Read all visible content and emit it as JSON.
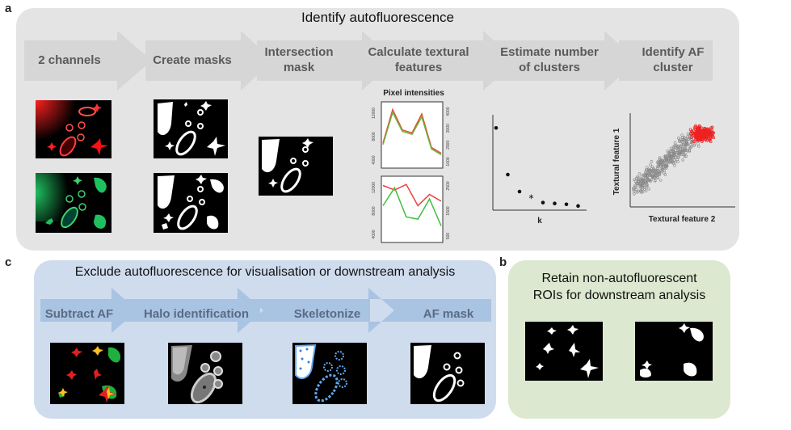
{
  "panel_a": {
    "letter": "a",
    "title": "Identify autofluorescence",
    "steps": [
      "2 channels",
      "Create masks",
      "Intersection mask",
      "Calculate textural features",
      "Estimate number of clusters",
      "Identify AF cluster"
    ],
    "steps_lines": [
      [
        "2 channels"
      ],
      [
        "Create masks"
      ],
      [
        "Intersection",
        "mask"
      ],
      [
        "Calculate textural",
        "features"
      ],
      [
        "Estimate number",
        "of clusters"
      ],
      [
        "Identify AF",
        "cluster"
      ]
    ],
    "pixel_title": "Pixel intensities",
    "elbow_xlabel": "k",
    "scatter_xlabel": "Textural feature 2",
    "scatter_ylabel": "Textural feature 1",
    "colors": {
      "panel_bg": "#e4e4e4",
      "arrow": "#d6d6d6",
      "red_channel": "#e02020",
      "green_channel": "#20b050"
    }
  },
  "panel_c": {
    "letter": "c",
    "title": "Exclude autofluorescence for visualisation or downstream analysis",
    "steps": [
      "Subtract AF",
      "Halo identification",
      "Skeletonize",
      "AF mask"
    ],
    "colors": {
      "panel_bg": "#cfdced",
      "arrow": "#a9c3e3"
    }
  },
  "panel_b": {
    "letter": "b",
    "title_line1": "Retain non-autofluorescent",
    "title_line2": "ROIs for downstream analysis",
    "colors": {
      "panel_bg": "#dce8cf"
    }
  },
  "chart_data": [
    {
      "type": "line",
      "title": "Pixel intensities",
      "left_ticks": [
        "4000",
        "8000",
        "12000"
      ],
      "right_ticks": [
        "1000",
        "2000",
        "3000",
        "4000"
      ],
      "series": [
        {
          "values": [
            1500,
            3800,
            2400,
            2200,
            3500,
            1200,
            800
          ]
        },
        {
          "values": [
            1400,
            3600,
            2300,
            2100,
            3300,
            1100,
            700
          ]
        }
      ]
    },
    {
      "type": "line",
      "left_ticks": [
        "4000",
        "8000",
        "12000"
      ],
      "right_ticks": [
        "500",
        "1500",
        "2500"
      ],
      "series": [
        {
          "values": [
            2400,
            2200,
            2450,
            1500,
            2000,
            1700
          ]
        },
        {
          "values": [
            1500,
            2300,
            1000,
            900,
            1800,
            600
          ]
        }
      ]
    },
    {
      "type": "scatter",
      "xlabel": "k",
      "x": [
        1,
        2,
        3,
        4,
        5,
        6,
        7,
        8
      ],
      "y": [
        9.5,
        4.0,
        2.0,
        1.2,
        0.7,
        0.6,
        0.5,
        0.3
      ]
    },
    {
      "type": "scatter",
      "xlabel": "Textural feature 2",
      "ylabel": "Textural feature 1",
      "series": [
        {
          "color": "#888888"
        },
        {
          "color": "#ee2222"
        }
      ]
    }
  ]
}
